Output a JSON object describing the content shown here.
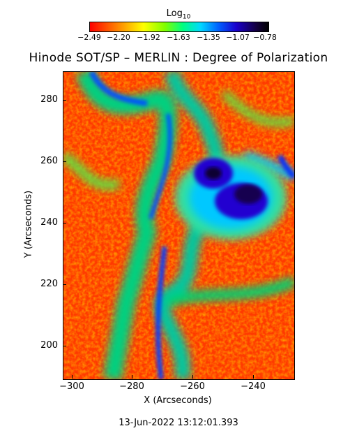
{
  "colorbar": {
    "label_main": "Log",
    "label_sub": "10",
    "tick_labels": [
      "−2.49",
      "−2.20",
      "−1.92",
      "−1.63",
      "−1.35",
      "−1.07",
      "−0.78"
    ]
  },
  "title": "Hinode SOT/SP – MERLIN : Degree of Polarization",
  "axes": {
    "x_label": "X (Arcseconds)",
    "y_label": "Y (Arcseconds)",
    "x_ticks": [
      "−300",
      "−280",
      "−260",
      "−240"
    ],
    "y_ticks": [
      "280",
      "260",
      "240",
      "220",
      "200"
    ],
    "x_range": [
      -303,
      -227
    ],
    "y_range": [
      189,
      290
    ]
  },
  "timestamp": "13-Jun-2022 13:12:01.393",
  "colors": {
    "low": "#ff0000",
    "mid_low": "#ffff00",
    "mid": "#00ff80",
    "mid_high": "#00d8ff",
    "high": "#1a00cc",
    "max": "#000000"
  }
}
